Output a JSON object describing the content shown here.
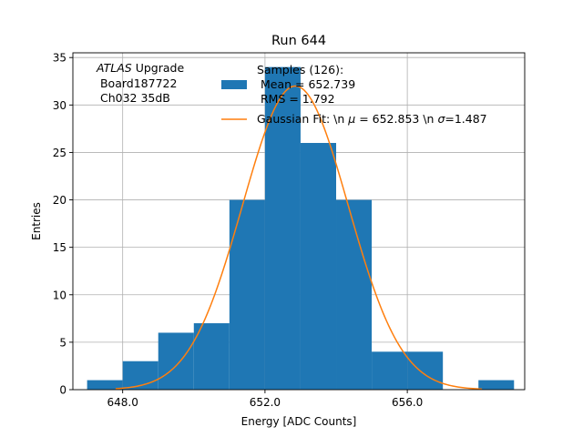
{
  "chart_data": {
    "type": "bar",
    "title": "Run 644",
    "xlabel": "Energy [ADC Counts]",
    "ylabel": "Entries",
    "xlim": [
      646.6,
      659.3
    ],
    "ylim": [
      0,
      35.5
    ],
    "grid": true,
    "xticks": [
      648.0,
      652.0,
      656.0
    ],
    "xtick_labels": [
      "648.0",
      "652.0",
      "656.0"
    ],
    "yticks": [
      0,
      5,
      10,
      15,
      20,
      25,
      30,
      35
    ],
    "ytick_labels": [
      "0",
      "5",
      "10",
      "15",
      "20",
      "25",
      "30",
      "35"
    ],
    "bin_edges": [
      647.0,
      648.0,
      649.0,
      650.0,
      651.0,
      652.0,
      653.0,
      654.0,
      655.0,
      656.0,
      657.0,
      658.0,
      659.0
    ],
    "counts": [
      1,
      3,
      6,
      7,
      20,
      34,
      26,
      20,
      4,
      4,
      0,
      1
    ],
    "histogram_color": "#1f77b4",
    "fit": {
      "type": "gaussian",
      "amplitude": 32.0,
      "mu": 652.853,
      "sigma": 1.487,
      "x_range": [
        647.8,
        658.1
      ],
      "color": "#ff7f0e"
    },
    "annotation": {
      "italic": "ATLAS",
      "rest": " Upgrade",
      "line2": " Board187722",
      "line3": " Ch032 35dB"
    },
    "legend": {
      "placement": "top-right",
      "histogram_label_1": "Samples (126):",
      "histogram_label_2": " Mean = 652.739",
      "histogram_label_3": " RMS = 1.792",
      "fit_label_prefix": "Gaussian Fit: \\n ",
      "fit_mu_symbol": "μ",
      "fit_mu_text": " = 652.853 \\n ",
      "fit_sigma_symbol": "σ",
      "fit_sigma_text": "=1.487"
    }
  }
}
